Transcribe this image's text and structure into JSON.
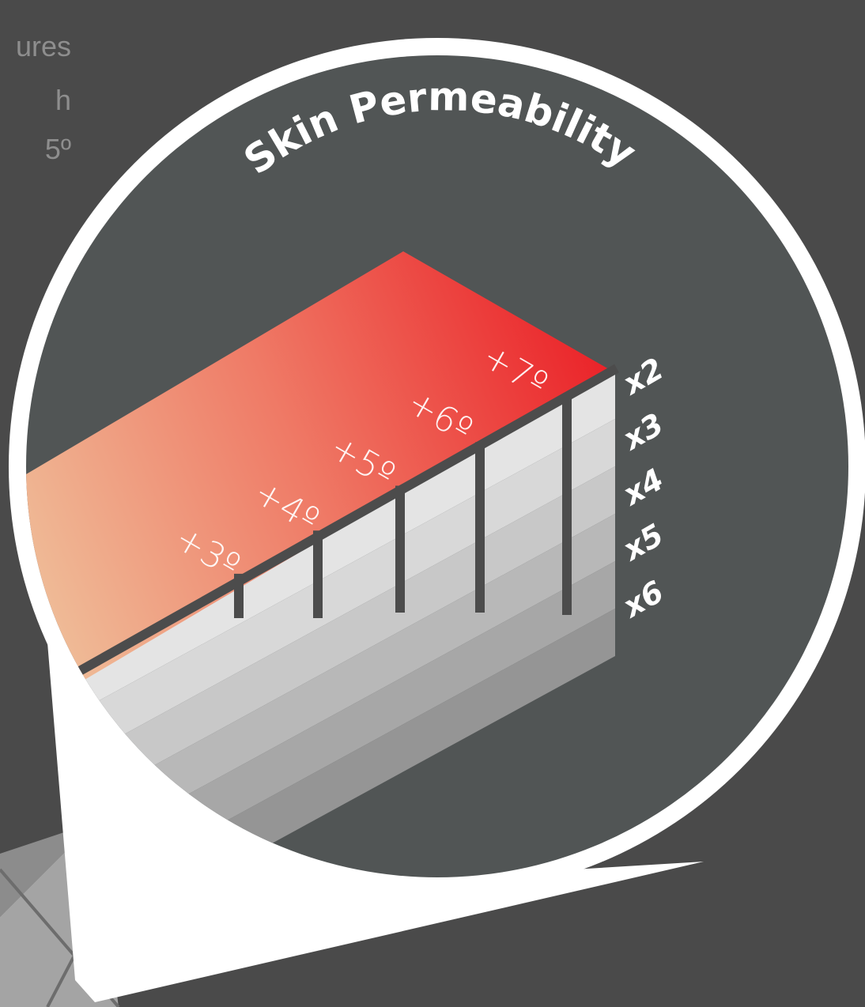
{
  "background_text": {
    "line1": "ures",
    "line2": "h",
    "line3": "5º"
  },
  "badge": {
    "title": "Skin Permeability"
  },
  "temperature_marks": [
    "+3º",
    "+4º",
    "+5º",
    "+6º",
    "+7º"
  ],
  "permeability_factors": [
    "x2",
    "x3",
    "x4",
    "x5",
    "x6"
  ],
  "colors": {
    "background": "#4a4a4a",
    "badge_fill": "#515555",
    "badge_rim": "#ffffff",
    "gradient_warm": "#ea1c24",
    "gradient_cool": "#efba96",
    "layer_lightest": "#e4e4e4",
    "layer_darkest": "#959595"
  }
}
